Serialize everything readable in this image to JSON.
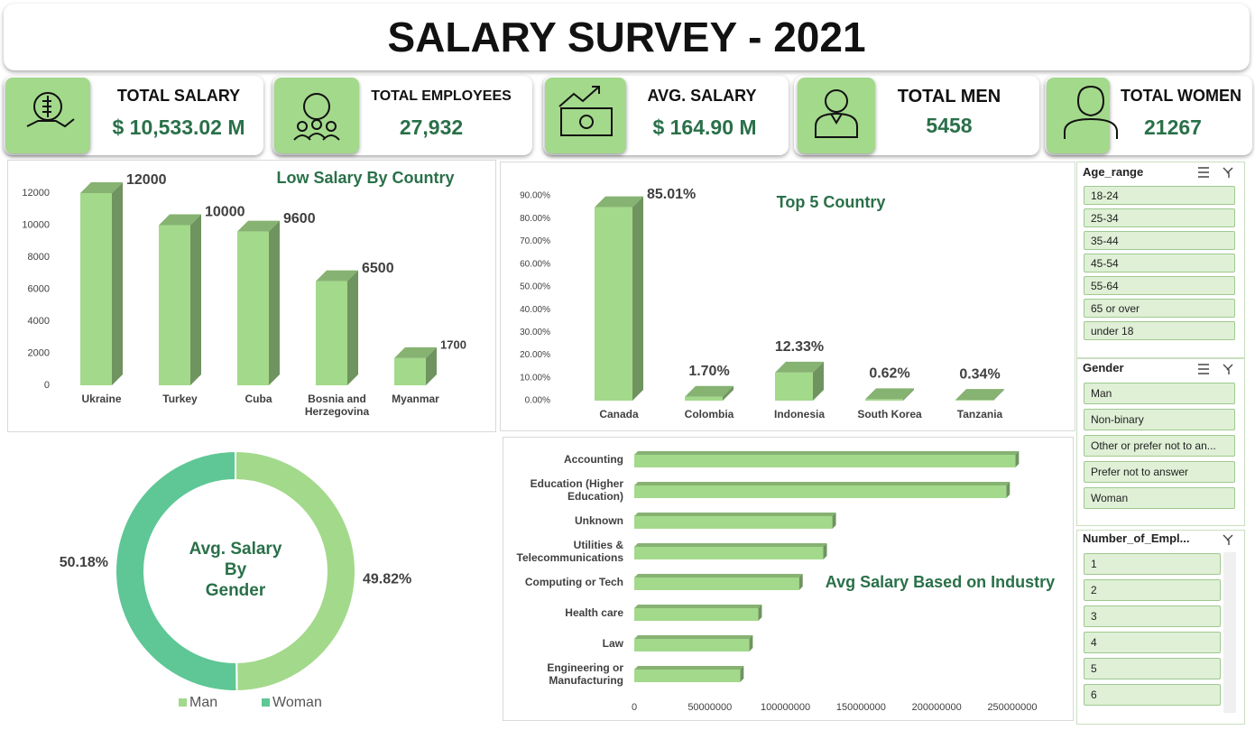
{
  "header": {
    "title": "SALARY SURVEY - 2021"
  },
  "kpis": [
    {
      "label": "TOTAL SALARY",
      "value": "$ 10,533.02 M"
    },
    {
      "label": "TOTAL EMPLOYEES",
      "value": "27,932"
    },
    {
      "label": "AVG. SALARY",
      "value": "$ 164.90 M"
    },
    {
      "label": "TOTAL MEN",
      "value": "5458"
    },
    {
      "label": "TOTAL WOMEN",
      "value": "21267"
    }
  ],
  "chart_data": [
    {
      "type": "bar",
      "title": "Low Salary By Country",
      "categories": [
        "Ukraine",
        "Turkey",
        "Cuba",
        "Bosnia and Herzegovina",
        "Myanmar"
      ],
      "values": [
        12000,
        10000,
        9600,
        6500,
        1700
      ],
      "color": "#a3d98b",
      "ylim": [
        0,
        12000
      ],
      "yticks": [
        0,
        2000,
        4000,
        6000,
        8000,
        10000,
        12000
      ]
    },
    {
      "type": "bar",
      "title": "Top 5 Country",
      "categories": [
        "Canada",
        "Colombia",
        "Indonesia",
        "South Korea",
        "Tanzania"
      ],
      "values": [
        85.01,
        1.7,
        12.33,
        0.62,
        0.34
      ],
      "value_labels": [
        "85.01%",
        "1.70%",
        "12.33%",
        "0.62%",
        "0.34%"
      ],
      "color": "#a3d98b",
      "ylim": [
        0,
        90
      ],
      "yticks": [
        {
          "value": 0,
          "label": "0.00%"
        },
        {
          "value": 10,
          "label": "10.00%"
        },
        {
          "value": 20,
          "label": "20.00%"
        },
        {
          "value": 30,
          "label": "30.00%"
        },
        {
          "value": 40,
          "label": "40.00%"
        },
        {
          "value": 50,
          "label": "50.00%"
        },
        {
          "value": 60,
          "label": "60.00%"
        },
        {
          "value": 70,
          "label": "70.00%"
        },
        {
          "value": 80,
          "label": "80.00%"
        },
        {
          "value": 90,
          "label": "90.00%"
        }
      ]
    },
    {
      "type": "donut",
      "title": "Avg. Salary\nBy\nGender",
      "categories": [
        "Man",
        "Woman"
      ],
      "values": [
        49.82,
        50.18
      ],
      "value_labels": [
        "49.82%",
        "50.18%"
      ],
      "colors": [
        "#a3d98b",
        "#5ec795"
      ],
      "legend": "bottom"
    },
    {
      "type": "hbar",
      "title": "Avg Salary Based on Industry",
      "categories": [
        "Accounting",
        "Education (Higher Education)",
        "Unknown",
        "Utilities & Telecommunications",
        "Computing or Tech",
        "Health care",
        "Law",
        "Engineering or Manufacturing"
      ],
      "values": [
        252000000,
        246000000,
        131000000,
        125000000,
        109000000,
        82000000,
        76000000,
        70000000
      ],
      "color": "#a3d98b",
      "xlim": [
        0,
        270000000
      ],
      "xticks": [
        0,
        50000000,
        100000000,
        150000000,
        200000000,
        250000000
      ]
    }
  ],
  "slicers": [
    {
      "title": "Age_range",
      "items": [
        "18-24",
        "25-34",
        "35-44",
        "45-54",
        "55-64",
        "65 or over",
        "under 18"
      ]
    },
    {
      "title": "Gender",
      "items": [
        "Man",
        "Non-binary",
        "Other or prefer not to an...",
        "Prefer not to answer",
        "Woman"
      ]
    },
    {
      "title": "Number_of_Empl...",
      "items": [
        "1",
        "2",
        "3",
        "4",
        "5",
        "6"
      ]
    }
  ]
}
